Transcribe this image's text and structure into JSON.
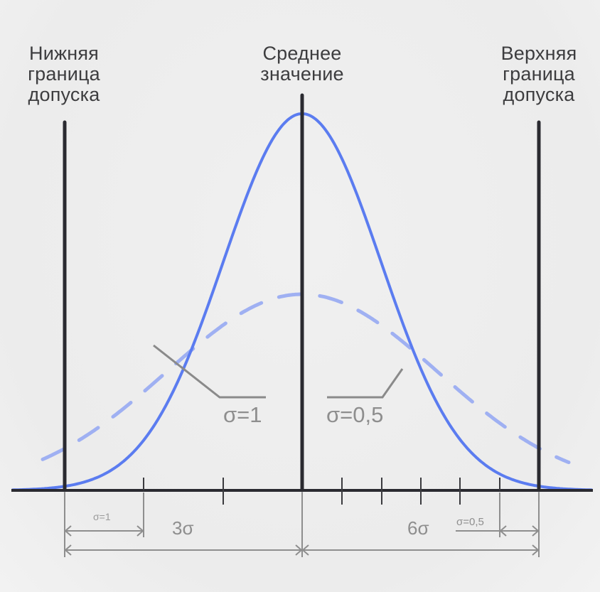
{
  "labels": {
    "lower_limit": [
      "Нижняя",
      "граница",
      "допуска"
    ],
    "mean": [
      "Среднее",
      "значение"
    ],
    "upper_limit": [
      "Верхняя",
      "граница",
      "допуска"
    ]
  },
  "curve_labels": {
    "wide": "σ=1",
    "narrow": "σ=0,5"
  },
  "dimensions": {
    "sigma1_small": "σ=1",
    "three_sigma": "3σ",
    "six_sigma": "6σ",
    "sigma05_small": "σ=0,5"
  },
  "colors": {
    "solid_curve": "#5b7cf0",
    "dashed_curve": "#9fb0f2",
    "axis": "#2a2a30",
    "dimension": "#8e8e8e",
    "text": "#3d3d3f"
  }
}
